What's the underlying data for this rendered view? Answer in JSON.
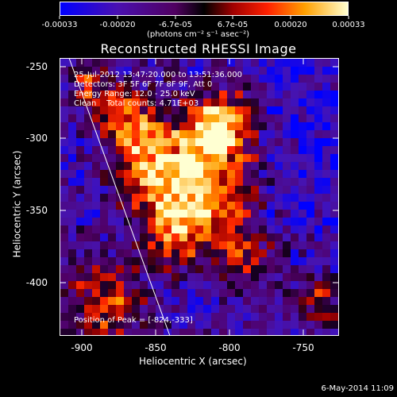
{
  "colorbar": {
    "tick_labels": [
      "-0.00033",
      "-0.00020",
      "-6.7e-05",
      "6.7e-05",
      "0.00020",
      "0.00033"
    ],
    "units": "(photons cm⁻² s⁻¹ asec⁻²)"
  },
  "title": "Reconstructed RHESSI Image",
  "info": {
    "time_range": "25-Jul-2012 13:47:20.000 to 13:51:36.000",
    "detectors": "Detectors: 3F 5F 6F 7F 8F 9F, Att 0",
    "energy": "Energy Range: 12.0 - 25.0 keV",
    "method": "Clean    Total counts: 4.71E+03",
    "peak": "Position of Peak = [-824,-333]"
  },
  "axes": {
    "xlabel": "Heliocentric X (arcsec)",
    "ylabel": "Heliocentric Y (arcsec)",
    "xticks": [
      "-900",
      "-850",
      "-800",
      "-750"
    ],
    "yticks": [
      "-250",
      "-300",
      "-350",
      "-400"
    ]
  },
  "footer": {
    "date": "6-May-2014 11:09"
  }
}
